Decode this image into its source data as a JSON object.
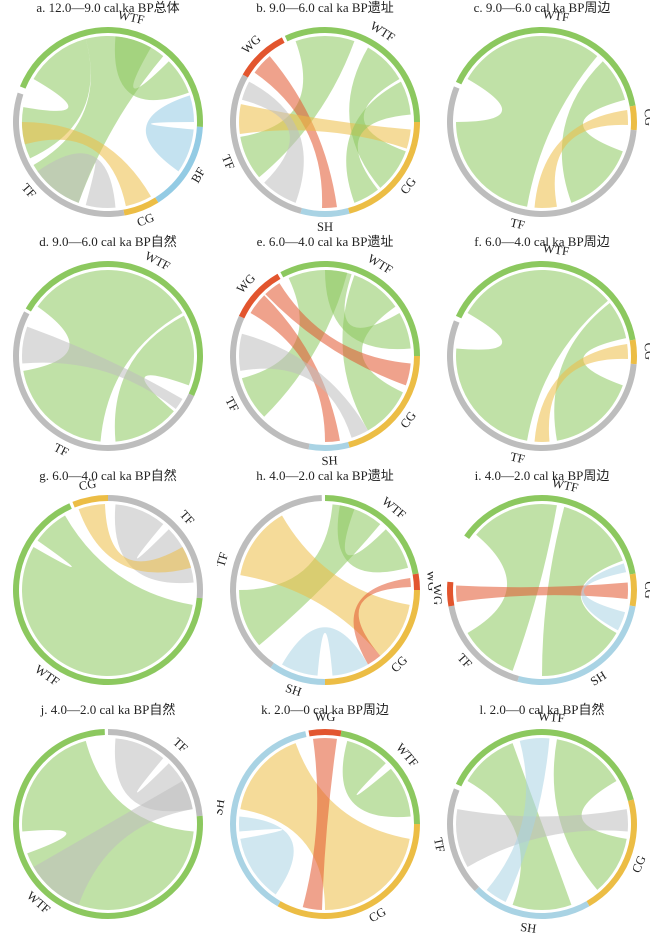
{
  "colors": {
    "WTF": "#8cc85f",
    "TF": "#bdbdbd",
    "BF": "#93cbe4",
    "CG": "#ecbd45",
    "SH": "#a9d3e4",
    "WG": "#e2552e"
  },
  "chart_data": [
    {
      "type": "chord",
      "title": "a. 12.0—9.0 cal ka BP总体",
      "groups": [
        {
          "name": "WTF",
          "start": 292,
          "end": 93
        },
        {
          "name": "BF",
          "start": 93,
          "end": 148
        },
        {
          "name": "CG",
          "start": 148,
          "end": 170
        },
        {
          "name": "TF",
          "start": 170,
          "end": 288
        }
      ],
      "chords": [
        {
          "from": "WTF",
          "to": "TF",
          "a1": [
            300,
            345
          ],
          "a2": [
            245,
            280
          ]
        },
        {
          "from": "WTF",
          "to": "TF",
          "a1": [
            345,
            40
          ],
          "a2": [
            200,
            240
          ]
        },
        {
          "from": "WTF",
          "to": "WTF",
          "a1": [
            45,
            70
          ],
          "a2": [
            5,
            30
          ]
        },
        {
          "from": "BF",
          "to": "WTF",
          "a1": [
            95,
            125
          ],
          "a2": [
            72,
            90
          ]
        },
        {
          "from": "TF",
          "to": "TF",
          "a1": [
            175,
            195
          ],
          "a2": [
            200,
            235
          ]
        },
        {
          "from": "CG",
          "to": "TF",
          "a1": [
            150,
            168
          ],
          "a2": [
            255,
            270
          ]
        }
      ]
    },
    {
      "type": "chord",
      "title": "b. 9.0—6.0 cal ka BP遗址",
      "groups": [
        {
          "name": "WTF",
          "start": 335,
          "end": 90
        },
        {
          "name": "CG",
          "start": 90,
          "end": 165
        },
        {
          "name": "SH",
          "start": 165,
          "end": 195
        },
        {
          "name": "TF",
          "start": 195,
          "end": 300
        },
        {
          "name": "WG",
          "start": 300,
          "end": 333
        }
      ],
      "chords": [
        {
          "from": "WTF",
          "to": "TF",
          "a1": [
            340,
            20
          ],
          "a2": [
            230,
            260
          ]
        },
        {
          "from": "WTF",
          "to": "CG",
          "a1": [
            30,
            60
          ],
          "a2": [
            110,
            140
          ]
        },
        {
          "from": "WG",
          "to": "SH",
          "a1": [
            305,
            320
          ],
          "a2": [
            172,
            182
          ]
        },
        {
          "from": "CG",
          "to": "TF",
          "a1": [
            95,
            108
          ],
          "a2": [
            262,
            282
          ]
        },
        {
          "from": "TF",
          "to": "TF",
          "a1": [
            200,
            225
          ],
          "a2": [
            285,
            298
          ]
        },
        {
          "from": "WTF",
          "to": "CG",
          "a1": [
            62,
            85
          ],
          "a2": [
            142,
            160
          ]
        }
      ]
    },
    {
      "type": "chord",
      "title": "c. 9.0—6.0 cal ka BP周边",
      "groups": [
        {
          "name": "WTF",
          "start": 295,
          "end": 80
        },
        {
          "name": "CG",
          "start": 80,
          "end": 95
        },
        {
          "name": "TF",
          "start": 95,
          "end": 292
        }
      ],
      "chords": [
        {
          "from": "WTF",
          "to": "TF",
          "a1": [
            300,
            40
          ],
          "a2": [
            190,
            270
          ]
        },
        {
          "from": "WTF",
          "to": "TF",
          "a1": [
            45,
            75
          ],
          "a2": [
            110,
            160
          ]
        },
        {
          "from": "CG",
          "to": "TF",
          "a1": [
            82,
            92
          ],
          "a2": [
            170,
            185
          ]
        }
      ]
    },
    {
      "type": "chord",
      "title": "d. 9.0—6.0 cal ka BP自然",
      "groups": [
        {
          "name": "WTF",
          "start": 300,
          "end": 115
        },
        {
          "name": "TF",
          "start": 115,
          "end": 298
        }
      ],
      "chords": [
        {
          "from": "WTF",
          "to": "TF",
          "a1": [
            305,
            60
          ],
          "a2": [
            185,
            260
          ]
        },
        {
          "from": "WTF",
          "to": "TF",
          "a1": [
            62,
            110
          ],
          "a2": [
            130,
            175
          ]
        },
        {
          "from": "TF",
          "to": "TF",
          "a1": [
            265,
            290
          ],
          "a2": [
            120,
            128
          ]
        }
      ]
    },
    {
      "type": "chord",
      "title": "e. 6.0—4.0 cal ka BP遗址",
      "groups": [
        {
          "name": "WTF",
          "start": 332,
          "end": 90
        },
        {
          "name": "CG",
          "start": 90,
          "end": 165
        },
        {
          "name": "SH",
          "start": 165,
          "end": 190
        },
        {
          "name": "TF",
          "start": 190,
          "end": 295
        },
        {
          "name": "WG",
          "start": 295,
          "end": 330
        }
      ],
      "chords": [
        {
          "from": "WTF",
          "to": "TF",
          "a1": [
            335,
            15
          ],
          "a2": [
            225,
            255
          ]
        },
        {
          "from": "WTF",
          "to": "CG",
          "a1": [
            20,
            55
          ],
          "a2": [
            115,
            150
          ]
        },
        {
          "from": "WG",
          "to": "SH",
          "a1": [
            300,
            315
          ],
          "a2": [
            170,
            180
          ]
        },
        {
          "from": "WG",
          "to": "CG",
          "a1": [
            316,
            328
          ],
          "a2": [
            95,
            110
          ]
        },
        {
          "from": "TF",
          "to": "CG",
          "a1": [
            260,
            285
          ],
          "a2": [
            150,
            162
          ]
        },
        {
          "from": "WTF",
          "to": "WTF",
          "a1": [
            60,
            85
          ],
          "a2": [
            0,
            18
          ]
        }
      ]
    },
    {
      "type": "chord",
      "title": "f. 6.0—4.0 cal ka BP周边",
      "groups": [
        {
          "name": "WTF",
          "start": 295,
          "end": 80
        },
        {
          "name": "CG",
          "start": 80,
          "end": 95
        },
        {
          "name": "TF",
          "start": 95,
          "end": 292
        }
      ],
      "chords": [
        {
          "from": "WTF",
          "to": "TF",
          "a1": [
            300,
            50
          ],
          "a2": [
            190,
            275
          ]
        },
        {
          "from": "WTF",
          "to": "TF",
          "a1": [
            52,
            78
          ],
          "a2": [
            110,
            170
          ]
        },
        {
          "from": "CG",
          "to": "TF",
          "a1": [
            82,
            92
          ],
          "a2": [
            175,
            185
          ]
        }
      ]
    },
    {
      "type": "chord",
      "title": "g. 6.0—4.0 cal ka BP自然",
      "groups": [
        {
          "name": "CG",
          "start": 338,
          "end": 0
        },
        {
          "name": "TF",
          "start": 0,
          "end": 95
        },
        {
          "name": "WTF",
          "start": 95,
          "end": 336
        }
      ],
      "chords": [
        {
          "from": "WTF",
          "to": "WTF",
          "a1": [
            100,
            300
          ],
          "a2": [
            305,
            330
          ]
        },
        {
          "from": "TF",
          "to": "TF",
          "a1": [
            5,
            40
          ],
          "a2": [
            45,
            85
          ]
        },
        {
          "from": "CG",
          "to": "TF",
          "a1": [
            340,
            358
          ],
          "a2": [
            60,
            75
          ]
        }
      ]
    },
    {
      "type": "chord",
      "title": "h. 4.0—2.0 cal ka BP遗址",
      "groups": [
        {
          "name": "WTF",
          "start": 0,
          "end": 80
        },
        {
          "name": "WG",
          "start": 80,
          "end": 90
        },
        {
          "name": "CG",
          "start": 90,
          "end": 180
        },
        {
          "name": "SH",
          "start": 180,
          "end": 215
        },
        {
          "name": "TF",
          "start": 215,
          "end": 358
        }
      ],
      "chords": [
        {
          "from": "WTF",
          "to": "TF",
          "a1": [
            5,
            40
          ],
          "a2": [
            230,
            270
          ]
        },
        {
          "from": "CG",
          "to": "TF",
          "a1": [
            100,
            140
          ],
          "a2": [
            280,
            330
          ]
        },
        {
          "from": "WG",
          "to": "CG",
          "a1": [
            82,
            88
          ],
          "a2": [
            140,
            150
          ]
        },
        {
          "from": "SH",
          "to": "CG",
          "a1": [
            185,
            210
          ],
          "a2": [
            150,
            175
          ]
        },
        {
          "from": "WTF",
          "to": "WTF",
          "a1": [
            45,
            75
          ],
          "a2": [
            10,
            20
          ]
        }
      ]
    },
    {
      "type": "chord",
      "title": "i. 4.0—2.0 cal ka BP周边",
      "groups": [
        {
          "name": "WTF",
          "start": 305,
          "end": 80
        },
        {
          "name": "CG",
          "start": 80,
          "end": 100
        },
        {
          "name": "SH",
          "start": 100,
          "end": 195
        },
        {
          "name": "TF",
          "start": 195,
          "end": 260
        },
        {
          "name": "WG",
          "start": 260,
          "end": 275
        }
      ],
      "chords": [
        {
          "from": "WTF",
          "to": "TF",
          "a1": [
            310,
            10
          ],
          "a2": [
            200,
            240
          ]
        },
        {
          "from": "WTF",
          "to": "SH",
          "a1": [
            15,
            70
          ],
          "a2": [
            120,
            180
          ]
        },
        {
          "from": "WG",
          "to": "CG",
          "a1": [
            262,
            273
          ],
          "a2": [
            85,
            96
          ]
        },
        {
          "from": "SH",
          "to": "WTF",
          "a1": [
            105,
            118
          ],
          "a2": [
            72,
            78
          ]
        }
      ]
    },
    {
      "type": "chord",
      "title": "j. 4.0—2.0 cal ka BP自然",
      "groups": [
        {
          "name": "TF",
          "start": 0,
          "end": 85
        },
        {
          "name": "WTF",
          "start": 85,
          "end": 358
        }
      ],
      "chords": [
        {
          "from": "WTF",
          "to": "WTF",
          "a1": [
            95,
            250
          ],
          "a2": [
            265,
            345
          ]
        },
        {
          "from": "TF",
          "to": "TF",
          "a1": [
            5,
            40
          ],
          "a2": [
            45,
            80
          ]
        },
        {
          "from": "TF",
          "to": "WTF",
          "a1": [
            60,
            80
          ],
          "a2": [
            200,
            240
          ]
        }
      ]
    },
    {
      "type": "chord",
      "title": "k. 2.0—0 cal ka BP周边",
      "groups": [
        {
          "name": "WG",
          "start": 350,
          "end": 10
        },
        {
          "name": "WTF",
          "start": 10,
          "end": 90
        },
        {
          "name": "CG",
          "start": 90,
          "end": 210
        },
        {
          "name": "SH",
          "start": 210,
          "end": 348
        }
      ],
      "chords": [
        {
          "from": "CG",
          "to": "SH",
          "a1": [
            100,
            180
          ],
          "a2": [
            280,
            340
          ]
        },
        {
          "from": "SH",
          "to": "SH",
          "a1": [
            215,
            260
          ],
          "a2": [
            265,
            275
          ]
        },
        {
          "from": "WG",
          "to": "CG",
          "a1": [
            352,
            8
          ],
          "a2": [
            182,
            195
          ]
        },
        {
          "from": "WTF",
          "to": "WTF",
          "a1": [
            15,
            45
          ],
          "a2": [
            50,
            85
          ]
        }
      ]
    },
    {
      "type": "chord",
      "title": "l. 2.0—0 cal ka BP自然",
      "groups": [
        {
          "name": "WTF",
          "start": 295,
          "end": 75
        },
        {
          "name": "CG",
          "start": 75,
          "end": 150
        },
        {
          "name": "SH",
          "start": 150,
          "end": 225
        },
        {
          "name": "TF",
          "start": 225,
          "end": 292
        }
      ],
      "chords": [
        {
          "from": "WTF",
          "to": "SH",
          "a1": [
            300,
            340
          ],
          "a2": [
            160,
            200
          ]
        },
        {
          "from": "WTF",
          "to": "CG",
          "a1": [
            10,
            60
          ],
          "a2": [
            100,
            140
          ]
        },
        {
          "from": "TF",
          "to": "CG",
          "a1": [
            240,
            280
          ],
          "a2": [
            80,
            95
          ]
        },
        {
          "from": "SH",
          "to": "WTF",
          "a1": [
            205,
            220
          ],
          "a2": [
            345,
            5
          ]
        }
      ]
    }
  ]
}
